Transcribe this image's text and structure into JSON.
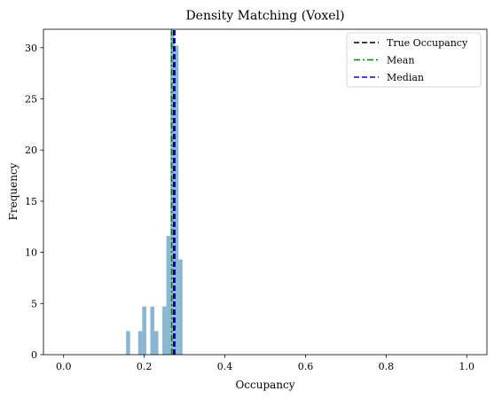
{
  "chart_data": {
    "type": "bar",
    "title": "Density Matching (Voxel)",
    "xlabel": "Occupancy",
    "ylabel": "Frequency",
    "xlim": [
      -0.05,
      1.05
    ],
    "ylim": [
      0,
      31.8
    ],
    "xticks": [
      0.0,
      0.2,
      0.4,
      0.6,
      0.8,
      1.0
    ],
    "xtick_labels": [
      "0.0",
      "0.2",
      "0.4",
      "0.6",
      "0.8",
      "1.0"
    ],
    "yticks": [
      0,
      5,
      10,
      15,
      20,
      25,
      30
    ],
    "ytick_labels": [
      "0",
      "5",
      "10",
      "15",
      "20",
      "25",
      "30"
    ],
    "grid": false,
    "legend_position": "top-right",
    "bar_width": 0.01,
    "bars": [
      {
        "x": 0.16,
        "value": 2.3
      },
      {
        "x": 0.19,
        "value": 2.3
      },
      {
        "x": 0.2,
        "value": 4.7
      },
      {
        "x": 0.22,
        "value": 4.7
      },
      {
        "x": 0.23,
        "value": 2.3
      },
      {
        "x": 0.25,
        "value": 4.7
      },
      {
        "x": 0.26,
        "value": 11.6
      },
      {
        "x": 0.27,
        "value": 31.6
      },
      {
        "x": 0.28,
        "value": 30.2
      },
      {
        "x": 0.29,
        "value": 9.3
      }
    ],
    "bar_color": "#8ab6d3",
    "lines": [
      {
        "name": "True Occupancy",
        "x": 0.273,
        "color": "#000000",
        "style": "dashed"
      },
      {
        "name": "Mean",
        "x": 0.268,
        "color": "#008000",
        "style": "dashdot"
      },
      {
        "name": "Median",
        "x": 0.276,
        "color": "#0000ff",
        "style": "dashed"
      }
    ]
  }
}
